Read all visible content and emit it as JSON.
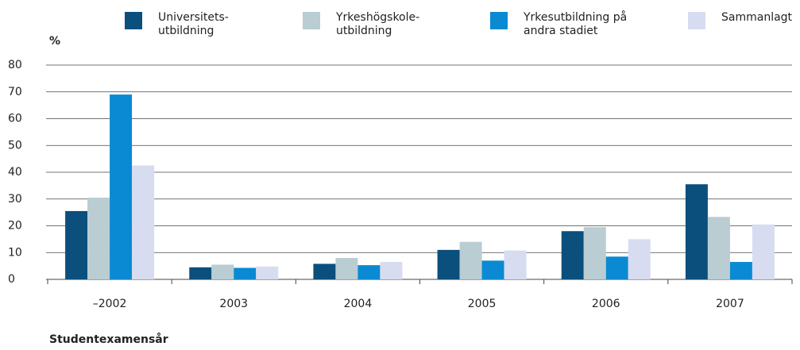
{
  "chart_data": {
    "type": "bar",
    "y_label": "%",
    "x_label": "Studentexamensår",
    "categories": [
      "–2002",
      "2003",
      "2004",
      "2005",
      "2006",
      "2007"
    ],
    "series": [
      {
        "name": "Universitets-\nutbildning",
        "color": "#0b4f7c",
        "values": [
          25.5,
          4.5,
          5.8,
          11,
          18,
          35.5
        ]
      },
      {
        "name": "Yrkeshögskole-\nutbildning",
        "color": "#b9cdd2",
        "values": [
          30.5,
          5.5,
          8,
          14,
          19.5,
          23.3
        ]
      },
      {
        "name": "Yrkesutbildning på\nandra stadiet",
        "color": "#0a8ad2",
        "values": [
          69,
          4.3,
          5.3,
          7,
          8.5,
          6.5
        ]
      },
      {
        "name": "Sammanlagt",
        "color": "#d8dcf0",
        "values": [
          42.5,
          4.8,
          6.5,
          10.8,
          15,
          20.5
        ]
      }
    ],
    "ylim": [
      0,
      80
    ],
    "yticks": [
      0,
      10,
      20,
      30,
      40,
      50,
      60,
      70,
      80
    ],
    "grid": true
  }
}
